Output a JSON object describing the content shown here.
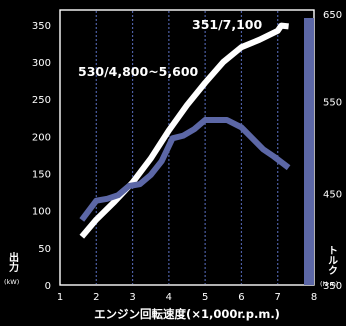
{
  "chart_data": {
    "type": "line",
    "xlabel": "エンジン回転速度(×1,000r.p.m.)",
    "x_ticks": [
      "1",
      "2",
      "3",
      "4",
      "5",
      "6",
      "7",
      "8"
    ],
    "xlim": [
      1,
      8
    ],
    "y_left": {
      "name": "出力",
      "unit": "(kW)",
      "ticks": [
        "0",
        "50",
        "100",
        "150",
        "200",
        "250",
        "300",
        "350"
      ],
      "ylim": [
        0,
        370
      ]
    },
    "y_right": {
      "name": "トルク",
      "unit": "(N·m)",
      "ticks": [
        "350",
        "450",
        "550",
        "650"
      ],
      "ylim": [
        350,
        650
      ]
    },
    "series": [
      {
        "key": "power",
        "axis": "left",
        "color": "#ffffff",
        "x": [
          1.6,
          2.0,
          2.5,
          3.0,
          3.5,
          4.0,
          4.5,
          5.0,
          5.5,
          6.0,
          6.5,
          7.0,
          7.1,
          7.3
        ],
        "y": [
          65,
          88,
          112,
          138,
          170,
          208,
          242,
          272,
          300,
          320,
          330,
          342,
          349,
          348
        ]
      },
      {
        "key": "torque",
        "axis": "right",
        "color": "#5c67a6",
        "x": [
          1.6,
          2.0,
          2.3,
          2.6,
          2.9,
          3.2,
          3.5,
          3.8,
          4.1,
          4.4,
          4.7,
          5.0,
          5.3,
          5.6,
          6.0,
          6.3,
          6.6,
          6.9,
          7.3
        ],
        "y": [
          421,
          442,
          444,
          448,
          458,
          460,
          470,
          485,
          510,
          513,
          520,
          530,
          530,
          530,
          522,
          510,
          498,
          490,
          478
        ]
      }
    ],
    "annotations": [
      {
        "text": "351/7,100"
      },
      {
        "text": "530/4,800~5,600"
      }
    ],
    "grid": "vertical-dotted"
  }
}
